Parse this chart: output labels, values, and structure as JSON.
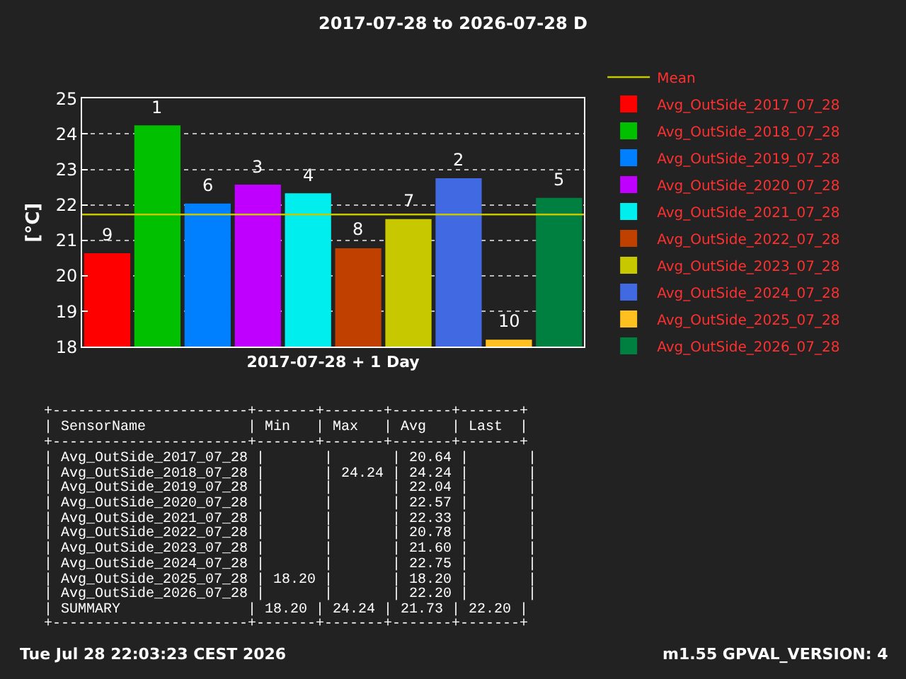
{
  "chart_data": {
    "type": "bar",
    "title": "2017-07-28 to 2026-07-28 D",
    "xlabel": "2017-07-28 + 1 Day",
    "ylabel": "[°C]",
    "categories": [
      null,
      null,
      null,
      null,
      null,
      null,
      null,
      null,
      null,
      null
    ],
    "series": [
      {
        "name": "Avg_OutSide_2017_07_28",
        "color": "#ff0000",
        "values": [
          20.64,
          null,
          null,
          null,
          null,
          null,
          null,
          null,
          null,
          null
        ]
      },
      {
        "name": "Avg_OutSide_2018_07_28",
        "color": "#00c000",
        "values": [
          null,
          24.24,
          null,
          null,
          null,
          null,
          null,
          null,
          null,
          null
        ]
      },
      {
        "name": "Avg_OutSide_2019_07_28",
        "color": "#0080ff",
        "values": [
          null,
          null,
          22.04,
          null,
          null,
          null,
          null,
          null,
          null,
          null
        ]
      },
      {
        "name": "Avg_OutSide_2020_07_28",
        "color": "#c000ff",
        "values": [
          null,
          null,
          null,
          22.57,
          null,
          null,
          null,
          null,
          null,
          null
        ]
      },
      {
        "name": "Avg_OutSide_2021_07_28",
        "color": "#00eeee",
        "values": [
          null,
          null,
          null,
          null,
          22.33,
          null,
          null,
          null,
          null,
          null
        ]
      },
      {
        "name": "Avg_OutSide_2022_07_28",
        "color": "#c04000",
        "values": [
          null,
          null,
          null,
          null,
          null,
          20.78,
          null,
          null,
          null,
          null
        ]
      },
      {
        "name": "Avg_OutSide_2023_07_28",
        "color": "#c8c800",
        "values": [
          null,
          null,
          null,
          null,
          null,
          null,
          21.6,
          null,
          null,
          null
        ]
      },
      {
        "name": "Avg_OutSide_2024_07_28",
        "color": "#4169e1",
        "values": [
          null,
          null,
          null,
          null,
          null,
          null,
          null,
          22.75,
          null,
          null
        ]
      },
      {
        "name": "Avg_OutSide_2025_07_28",
        "color": "#ffc020",
        "values": [
          null,
          null,
          null,
          null,
          null,
          null,
          null,
          null,
          18.2,
          null
        ]
      },
      {
        "name": "Avg_OutSide_2026_07_28",
        "color": "#008040",
        "values": [
          null,
          null,
          null,
          null,
          null,
          null,
          null,
          null,
          null,
          22.2
        ]
      }
    ],
    "ref_lines": [
      {
        "axis": "y",
        "value": 21.73,
        "label": "Mean",
        "color": "#c8c800"
      }
    ],
    "ylim": [
      18,
      25
    ],
    "yticks": [
      18,
      19,
      20,
      21,
      22,
      23,
      24,
      25
    ],
    "grid": "y",
    "legend": "right",
    "annotations": [
      {
        "text": "9",
        "y": 20.64
      },
      {
        "text": "1",
        "y": 24.24
      },
      {
        "text": "6",
        "y": 22.04
      },
      {
        "text": "3",
        "y": 22.57
      },
      {
        "text": "4",
        "y": 22.33
      },
      {
        "text": "8",
        "y": 20.78
      },
      {
        "text": "7",
        "y": 21.6
      },
      {
        "text": "2",
        "y": 22.75
      },
      {
        "text": "10",
        "y": 18.2
      },
      {
        "text": "5",
        "y": 22.2
      },
      "+-----------------------+-------+-------+-------+-------+",
      "| SensorName            | Min   | Max   | Avg   | Last  |",
      "+-----------------------+-------+-------+-------+-------+",
      "| Avg_OutSide_2017_07_28 |       |       | 20.64 |       |",
      "| Avg_OutSide_2018_07_28 |       | 24.24 | 24.24 |       |",
      "| Avg_OutSide_2019_07_28 |       |       | 22.04 |       |",
      "| Avg_OutSide_2020_07_28 |       |       | 22.57 |       |",
      "| Avg_OutSide_2021_07_28 |       |       | 22.33 |       |",
      "| Avg_OutSide_2022_07_28 |       |       | 20.78 |       |",
      "| Avg_OutSide_2023_07_28 |       |       | 21.60 |       |",
      "| Avg_OutSide_2024_07_28 |       |       | 22.75 |       |",
      "| Avg_OutSide_2025_07_28 | 18.20 |       | 18.20 |       |",
      "| Avg_OutSide_2026_07_28 |       |       | 22.20 |       |",
      "| SUMMARY               | 18.20 | 24.24 | 21.73 | 22.20 |",
      "+-----------------------+-------+-------+-------+-------+",
      "Tue Jul 28 22:03:23 CEST 2026",
      "m1.55 GPVAL_VERSION: 4"
    ]
  }
}
